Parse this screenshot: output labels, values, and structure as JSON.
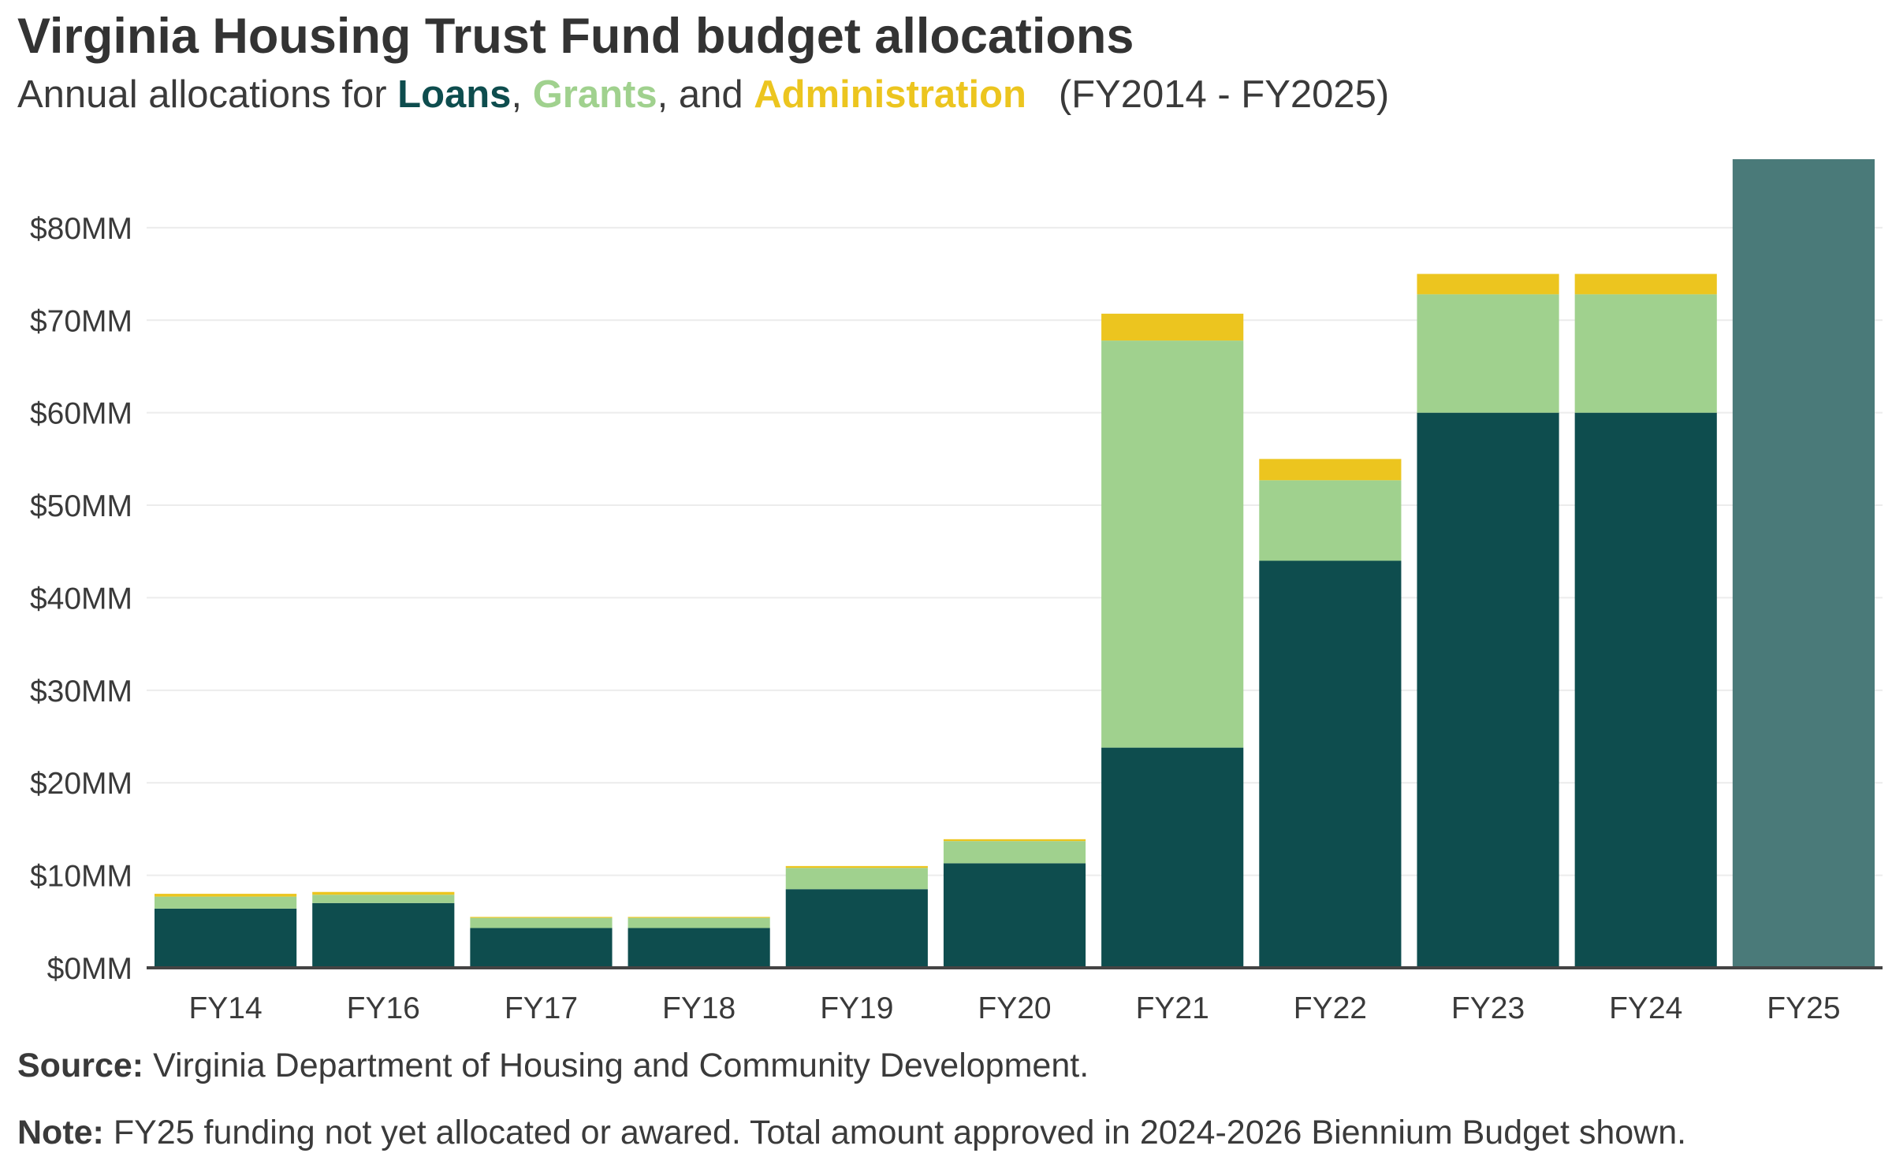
{
  "title": "Virginia Housing Trust Fund budget allocations",
  "subtitle": {
    "prefix": "Annual allocations for",
    "loans": "Loans",
    "sep1": ",",
    "grants": "Grants",
    "sep2": ", and",
    "admin": "Administration",
    "range": "(FY2014 - FY2025)"
  },
  "colors": {
    "loans": "#0e4d4e",
    "grants": "#a0d18e",
    "admin": "#ecc51f",
    "total": "#4a7a79",
    "grid": "#ececec",
    "axis": "#444444",
    "text": "#3a3a3a"
  },
  "footer": {
    "source_label": "Source:",
    "source_text": "Virginia Department of Housing and Community Development.",
    "note_label": "Note:",
    "note_text": "FY25 funding not yet allocated or awared. Total amount approved in 2024-2026 Biennium Budget shown."
  },
  "chart_data": {
    "type": "bar",
    "stacked": true,
    "categories": [
      "FY14",
      "FY16",
      "FY17",
      "FY18",
      "FY19",
      "FY20",
      "FY21",
      "FY22",
      "FY23",
      "FY24",
      "FY25"
    ],
    "series": [
      {
        "name": "Loans",
        "values": [
          6.4,
          7.0,
          4.3,
          4.3,
          8.5,
          11.3,
          23.8,
          44.0,
          60.0,
          60.0,
          null
        ]
      },
      {
        "name": "Grants",
        "values": [
          1.3,
          0.9,
          1.1,
          1.1,
          2.3,
          2.4,
          44.0,
          8.7,
          12.8,
          12.8,
          null
        ]
      },
      {
        "name": "Administration",
        "values": [
          0.3,
          0.3,
          0.1,
          0.1,
          0.2,
          0.2,
          2.9,
          2.3,
          2.2,
          2.2,
          null
        ]
      }
    ],
    "unallocated_total": [
      null,
      null,
      null,
      null,
      null,
      null,
      null,
      null,
      null,
      null,
      87.4
    ],
    "ylim": [
      0,
      87.4
    ],
    "yticks": [
      0,
      10,
      20,
      30,
      40,
      50,
      60,
      70,
      80
    ],
    "ytick_labels": [
      "$0MM",
      "$10MM",
      "$20MM",
      "$30MM",
      "$40MM",
      "$50MM",
      "$60MM",
      "$70MM",
      "$80MM"
    ],
    "xlabel": "",
    "ylabel": "",
    "grid": true,
    "legend": "in subtitle"
  }
}
